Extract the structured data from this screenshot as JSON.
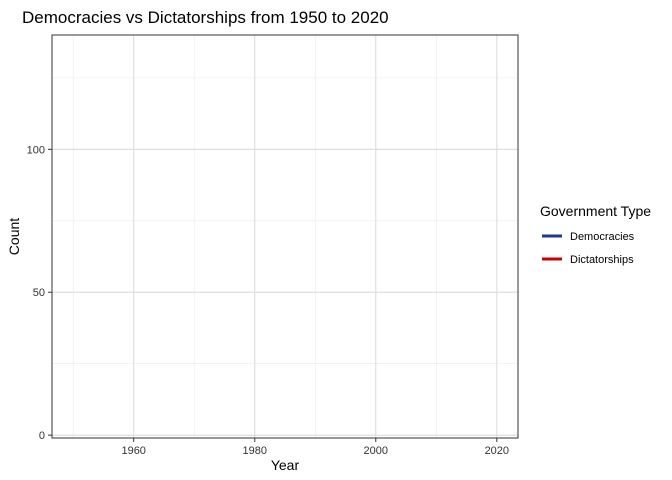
{
  "chart_data": {
    "type": "line",
    "title": "Democracies vs Dictatorships from 1950 to 2020",
    "xlabel": "Year",
    "ylabel": "Count",
    "xlim": [
      1946.5,
      2023.5
    ],
    "ylim": [
      -1,
      140
    ],
    "x_ticks": [
      1960,
      1980,
      2000,
      2020
    ],
    "x_minor_ticks": [
      1950,
      1970,
      1990,
      2010
    ],
    "y_ticks": [
      0,
      50,
      100
    ],
    "y_minor_ticks": [
      25,
      75,
      125
    ],
    "grid": true,
    "legend": {
      "title": "Government Type",
      "position": "right"
    },
    "series": [
      {
        "name": "Democracies",
        "color": "#1f3a93",
        "x": [],
        "y": []
      },
      {
        "name": "Dictatorships",
        "color": "#cc0000",
        "x": [],
        "y": []
      }
    ]
  }
}
